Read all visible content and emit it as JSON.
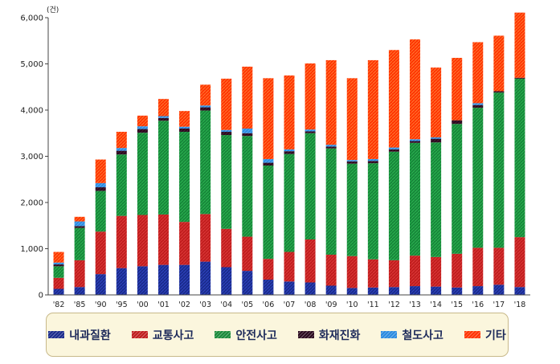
{
  "chart_data": {
    "type": "bar",
    "stacked": true,
    "unit_label": "(건)",
    "categories": [
      "'82",
      "'85",
      "'90",
      "'95",
      "'00",
      "'01",
      "'02",
      "'03",
      "'04",
      "'05",
      "'06",
      "'07",
      "'08",
      "'09",
      "'10",
      "'11",
      "'12",
      "'13",
      "'14",
      "'15",
      "'16",
      "'17",
      "'18"
    ],
    "ylim": [
      0,
      6000
    ],
    "yticks": [
      0,
      1000,
      2000,
      3000,
      4000,
      5000,
      6000
    ],
    "ytick_labels": [
      "0",
      "1,000",
      "2,000",
      "3,000",
      "4,000",
      "5,000",
      "6,000"
    ],
    "grid": false,
    "legend_position": "bottom",
    "series": [
      {
        "name": "내과질환",
        "color": "#1a2b8c",
        "values": [
          130,
          170,
          450,
          580,
          620,
          650,
          650,
          720,
          600,
          520,
          330,
          290,
          270,
          200,
          150,
          160,
          170,
          190,
          180,
          160,
          190,
          220,
          170
        ]
      },
      {
        "name": "교통사고",
        "color": "#c01d1d",
        "values": [
          240,
          580,
          920,
          1130,
          1110,
          1090,
          930,
          1030,
          830,
          740,
          450,
          640,
          930,
          670,
          690,
          610,
          580,
          660,
          640,
          730,
          830,
          800,
          1080
        ]
      },
      {
        "name": "안전사고",
        "color": "#1a8a3a",
        "values": [
          250,
          700,
          880,
          1330,
          1780,
          2030,
          1950,
          2240,
          2030,
          2180,
          2020,
          2120,
          2300,
          2300,
          2000,
          2080,
          2350,
          2440,
          2480,
          2810,
          3030,
          3360,
          3430
        ]
      },
      {
        "name": "화재진화",
        "color": "#2a0a1e",
        "values": [
          40,
          40,
          80,
          80,
          80,
          60,
          70,
          70,
          70,
          60,
          60,
          60,
          40,
          40,
          50,
          50,
          50,
          40,
          80,
          80,
          60,
          30,
          20
        ]
      },
      {
        "name": "철도사고",
        "color": "#2b8be0",
        "values": [
          40,
          100,
          90,
          60,
          60,
          40,
          40,
          40,
          40,
          100,
          80,
          40,
          40,
          40,
          30,
          40,
          40,
          40,
          30,
          0,
          40,
          0,
          0
        ]
      },
      {
        "name": "기타",
        "color": "#ff3300",
        "values": [
          230,
          100,
          510,
          350,
          230,
          370,
          340,
          450,
          1110,
          1340,
          1750,
          1600,
          1430,
          1830,
          1770,
          2140,
          2110,
          2160,
          1510,
          1350,
          1320,
          1200,
          1410
        ]
      }
    ]
  }
}
